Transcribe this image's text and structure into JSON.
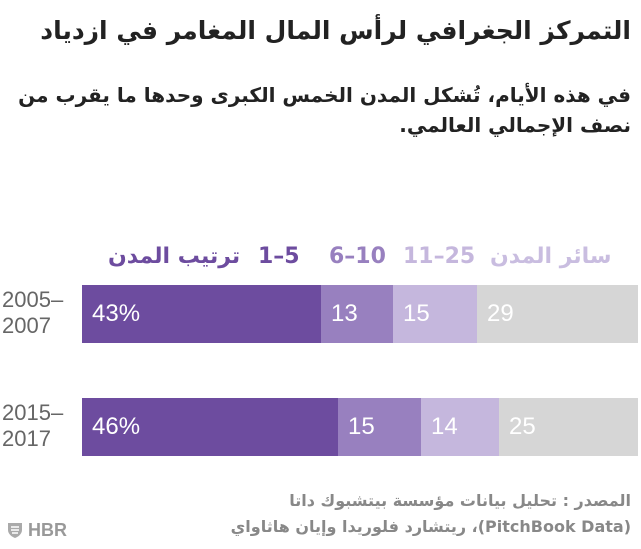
{
  "title": "التمركز الجغرافي لرأس المال المغامر في ازدياد",
  "subtitle": "في هذه الأيام، تُشكل المدن الخمس الكبرى وحدها ما يقرب من نصف الإجمالي العالمي.",
  "logo": "HBR",
  "source": {
    "line1": "المصدر : تحليل بيانات مؤسسة بيتشبوك داتا",
    "line2": "(PitchBook Data)، ريتشارد فلوريدا وإيان هاثاواي"
  },
  "colors": {
    "top5": "#6d4c9f",
    "rank6_10": "#9880bf",
    "rank11_25": "#c5b7dd",
    "others": "#d6d6d6",
    "legend_others": "#c9bde0"
  },
  "chart_data": {
    "type": "bar",
    "orientation": "horizontal",
    "stacked": true,
    "legend_placement": "top",
    "categories": [
      {
        "line1": "2005–",
        "line2": "2007"
      },
      {
        "line1": "2015–",
        "line2": "2017"
      }
    ],
    "series": [
      {
        "name": "1–5",
        "legend_label": "ترتيب المدن 1–5",
        "values": [
          43,
          46
        ],
        "labels": [
          "43%",
          "46%"
        ]
      },
      {
        "name": "6–10",
        "legend_label": "6–10",
        "values": [
          13,
          15
        ],
        "labels": [
          "13",
          "15"
        ]
      },
      {
        "name": "11–25",
        "legend_label": "11–25",
        "values": [
          15,
          14
        ],
        "labels": [
          "15",
          "14"
        ]
      },
      {
        "name": "سائر المدن",
        "legend_label": "سائر المدن",
        "values": [
          29,
          25
        ],
        "labels": [
          "29",
          "25"
        ]
      }
    ],
    "legend": {
      "prefix": "ترتيب المدن",
      "items": [
        "1–5",
        "6–10",
        "11–25",
        "سائر المدن"
      ]
    },
    "total": 100,
    "grid": false,
    "xlim": [
      0,
      100
    ]
  }
}
